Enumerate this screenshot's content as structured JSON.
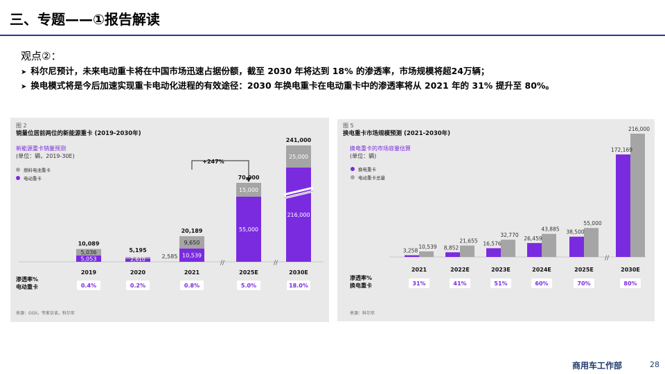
{
  "header": {
    "title": "三、专题——①报告解读"
  },
  "viewpoint": {
    "label": "观点②：",
    "points": [
      "科尔尼预计，未来电动重卡将在中国市场迅速占据份额，截至 2030 年将达到 18% 的渗透率，市场规模将超24万辆；",
      "换电模式将是今后加速实现重卡电动化进程的有效途径：2030 年换电重卡在电动重卡中的渗透率将从 2021 年的 31% 提升至 80%。"
    ]
  },
  "footer": {
    "dept": "商用车工作部",
    "page": "28"
  },
  "colors": {
    "purple": "#7a2be0",
    "gray": "#a5a5a5",
    "panel": "#e9e9e9",
    "accent": "#1f3a93"
  },
  "chart_data": [
    {
      "type": "bar",
      "fig": "图 2",
      "title": "销量位居前两位的新能源重卡 (2019-2030年)",
      "subtitle": "新能源重卡销量预测",
      "unit": "(单位：辆，2019-30E)",
      "legend": [
        "燃料电池重卡",
        "电动重卡"
      ],
      "categories": [
        "2019",
        "2020",
        "2021",
        "2025E",
        "2030E"
      ],
      "series": [
        {
          "name": "电动重卡",
          "values": [
            5053,
            2610,
            10539,
            55000,
            216000
          ]
        },
        {
          "name": "燃料电池重卡",
          "values": [
            5036,
            2585,
            9650,
            15000,
            25000
          ]
        }
      ],
      "totals": [
        "10,089",
        "5,195",
        "20,189",
        "70,000",
        "241,000"
      ],
      "bar_labels": [
        [
          "5,053",
          "5,036"
        ],
        [
          "2,610",
          "2,585"
        ],
        [
          "10,539",
          "9,650"
        ],
        [
          "55,000",
          "15,000"
        ],
        [
          "216,000",
          "25,000"
        ]
      ],
      "annotation": "+247%",
      "penetration_label": [
        "渗透率%",
        "电动重卡"
      ],
      "penetration": [
        "0.4%",
        "0.2%",
        "0.8%",
        "5.0%",
        "18.0%"
      ],
      "source": "来源：GGII，专家访谈，科尔尼"
    },
    {
      "type": "bar",
      "fig": "图 5",
      "title": "换电重卡市场规模预测 (2021-2030年)",
      "subtitle": "换电重卡的市场容量估算",
      "unit": "(单位：辆)",
      "legend": [
        "换电重卡",
        "电动重卡总量"
      ],
      "categories": [
        "2021",
        "2022E",
        "2023E",
        "2024E",
        "2025E",
        "2030E"
      ],
      "series": [
        {
          "name": "换电重卡",
          "values": [
            3258,
            8852,
            16576,
            26459,
            38500,
            172169
          ]
        },
        {
          "name": "电动重卡总量",
          "values": [
            10539,
            21655,
            32770,
            43885,
            55000,
            216000
          ]
        }
      ],
      "bar_labels": [
        [
          "3,258",
          "10,539"
        ],
        [
          "8,852",
          "21,655"
        ],
        [
          "16,576",
          "32,770"
        ],
        [
          "26,459",
          "43,885"
        ],
        [
          "38,500",
          "55,000"
        ],
        [
          "172,169",
          "216,000"
        ]
      ],
      "penetration_label": [
        "渗透率%",
        "换电重卡"
      ],
      "penetration": [
        "31%",
        "41%",
        "51%",
        "60%",
        "70%",
        "80%"
      ],
      "source": "来源：科尔尼"
    }
  ]
}
